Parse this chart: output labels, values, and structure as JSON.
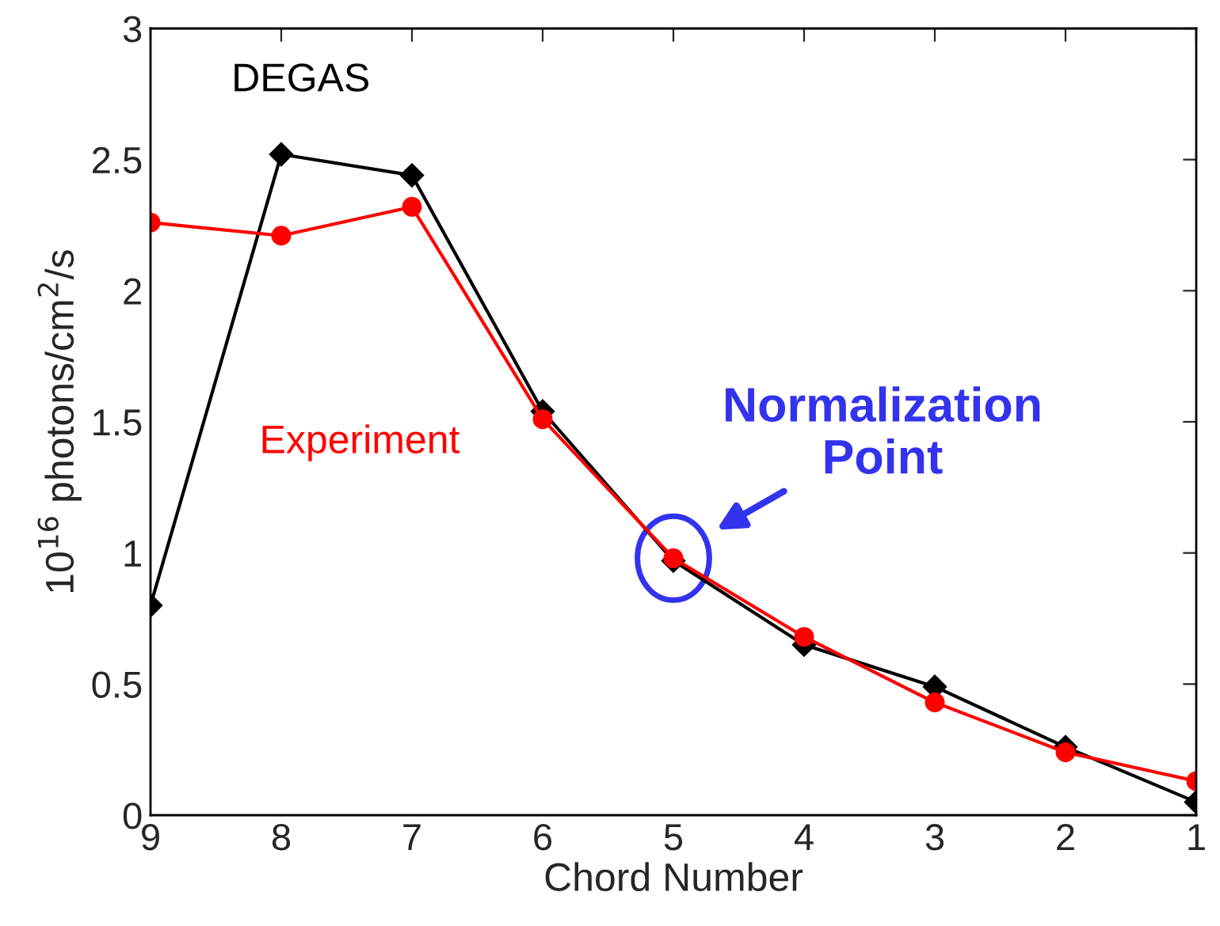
{
  "chart_data": {
    "type": "line",
    "xlabel": "Chord Number",
    "ylabel": "10$^{16}$ photons/cm$^{2}$/s",
    "x": [
      9,
      8,
      7,
      6,
      5,
      4,
      3,
      2,
      1
    ],
    "xlim": [
      9,
      1
    ],
    "xticks": [
      9,
      8,
      7,
      6,
      5,
      4,
      3,
      2,
      1
    ],
    "ylim": [
      0,
      3
    ],
    "yticks": [
      0,
      0.5,
      1,
      1.5,
      2,
      2.5,
      3
    ],
    "series": [
      {
        "name": "DEGAS",
        "color": "#000000",
        "marker": "diamond",
        "values": [
          0.8,
          2.52,
          2.44,
          1.54,
          0.97,
          0.65,
          0.49,
          0.26,
          0.05
        ]
      },
      {
        "name": "Experiment",
        "color": "#ff0000",
        "marker": "circle",
        "values": [
          2.26,
          2.21,
          2.32,
          1.51,
          0.98,
          0.68,
          0.43,
          0.24,
          0.13
        ]
      }
    ],
    "annotations": [
      {
        "text": "Normalization\nPoint",
        "x": 5,
        "y": 0.98
      }
    ],
    "grid": false,
    "legend": false
  }
}
